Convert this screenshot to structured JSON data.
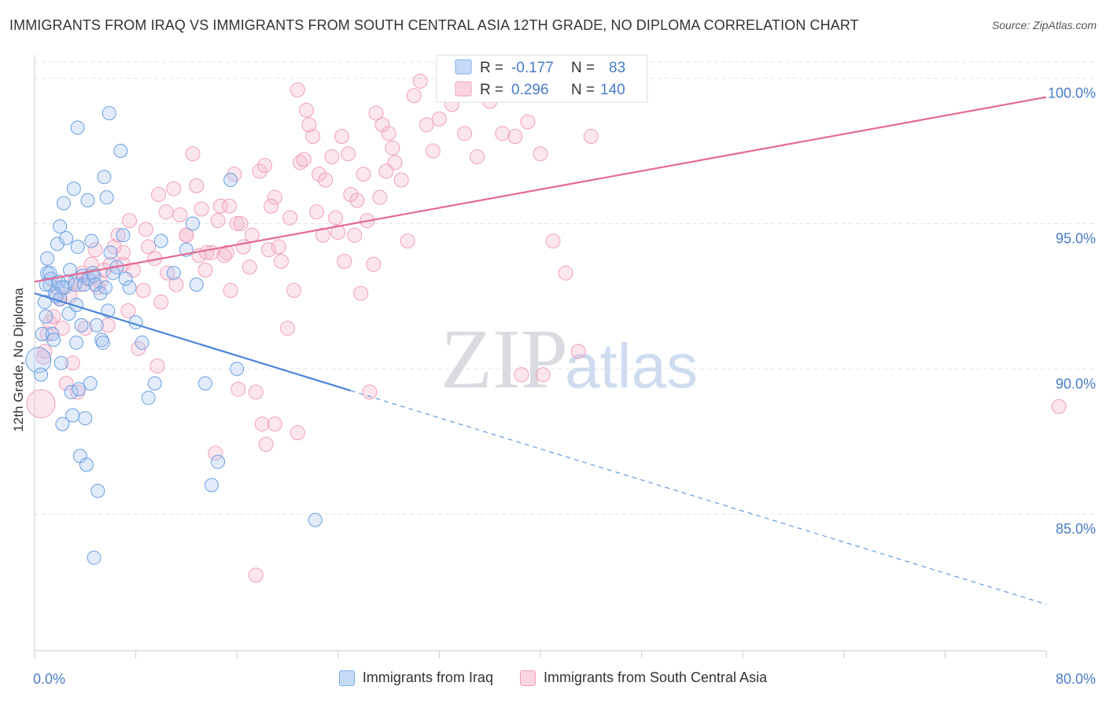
{
  "title": "IMMIGRANTS FROM IRAQ VS IMMIGRANTS FROM SOUTH CENTRAL ASIA 12TH GRADE, NO DIPLOMA CORRELATION CHART",
  "source": "Source: ZipAtlas.com",
  "watermark": {
    "zip": "ZIP",
    "atlas": "atlas"
  },
  "colors": {
    "blue": "#4a86d8",
    "blue_fill": "#a9c6f0",
    "pink": "#e46a93",
    "pink_fill": "#f4b6cb",
    "tick_label": "#4a7cc9"
  },
  "legend": {
    "r_label": "R =",
    "n_label": "N =",
    "entries": [
      {
        "r": "-0.177",
        "n": "83"
      },
      {
        "r": "0.296",
        "n": "140"
      }
    ]
  },
  "bottom_legend": [
    "Immigrants from Iraq",
    "Immigrants from South Central Asia"
  ],
  "chart_data": {
    "type": "scatter",
    "title": "IMMIGRANTS FROM IRAQ VS IMMIGRANTS FROM SOUTH CENTRAL ASIA 12TH GRADE, NO DIPLOMA CORRELATION CHART",
    "xlabel": "",
    "ylabel": "12th Grade, No Diploma",
    "xlim": [
      0,
      80
    ],
    "ylim": [
      80.3,
      100.8
    ],
    "x_tick_labels": [
      "0.0%",
      "80.0%"
    ],
    "y_ticks": [
      85,
      90,
      95,
      100
    ],
    "y_tick_labels": [
      "85.0%",
      "90.0%",
      "95.0%",
      "100.0%"
    ],
    "series": [
      {
        "name": "Immigrants from Iraq",
        "r": -0.177,
        "n": 83,
        "trend": {
          "x0": 0,
          "y0": 92.6,
          "x1": 25,
          "y1": 89.25,
          "dash_x1": 80,
          "dash_y1": 81.9
        },
        "points": [
          [
            0.3,
            90.3
          ],
          [
            0.6,
            91.2
          ],
          [
            0.8,
            92.3
          ],
          [
            0.9,
            91.8
          ],
          [
            1.0,
            93.3
          ],
          [
            1.2,
            92.9
          ],
          [
            1.3,
            93.1
          ],
          [
            1.4,
            91.2
          ],
          [
            1.5,
            91.0
          ],
          [
            1.6,
            92.6
          ],
          [
            1.8,
            94.3
          ],
          [
            1.9,
            93.0
          ],
          [
            2.0,
            92.4
          ],
          [
            2.1,
            90.2
          ],
          [
            2.2,
            88.1
          ],
          [
            2.3,
            95.7
          ],
          [
            2.4,
            92.8
          ],
          [
            2.6,
            93.0
          ],
          [
            2.7,
            91.9
          ],
          [
            2.8,
            93.4
          ],
          [
            2.9,
            89.2
          ],
          [
            3.0,
            88.4
          ],
          [
            3.1,
            96.2
          ],
          [
            3.2,
            92.9
          ],
          [
            3.3,
            90.9
          ],
          [
            3.4,
            94.2
          ],
          [
            3.5,
            89.3
          ],
          [
            3.6,
            87.0
          ],
          [
            3.7,
            91.5
          ],
          [
            3.8,
            93.2
          ],
          [
            3.9,
            92.9
          ],
          [
            4.0,
            88.3
          ],
          [
            4.1,
            86.7
          ],
          [
            4.2,
            95.8
          ],
          [
            4.3,
            93.1
          ],
          [
            4.4,
            89.5
          ],
          [
            4.5,
            94.4
          ],
          [
            4.6,
            93.3
          ],
          [
            4.7,
            93.2
          ],
          [
            4.8,
            92.9
          ],
          [
            4.9,
            91.5
          ],
          [
            5.0,
            85.8
          ],
          [
            5.2,
            92.6
          ],
          [
            5.3,
            91.0
          ],
          [
            5.4,
            90.9
          ],
          [
            5.5,
            96.6
          ],
          [
            5.6,
            92.8
          ],
          [
            5.7,
            95.9
          ],
          [
            5.8,
            92.0
          ],
          [
            5.9,
            98.8
          ],
          [
            6.0,
            94.0
          ],
          [
            6.2,
            93.3
          ],
          [
            6.5,
            93.5
          ],
          [
            6.8,
            97.5
          ],
          [
            7.0,
            94.6
          ],
          [
            7.2,
            93.1
          ],
          [
            7.5,
            92.8
          ],
          [
            8.0,
            91.6
          ],
          [
            8.5,
            90.9
          ],
          [
            9.0,
            89.0
          ],
          [
            9.5,
            89.5
          ],
          [
            10.0,
            94.4
          ],
          [
            11.0,
            93.3
          ],
          [
            12.0,
            94.1
          ],
          [
            12.5,
            95.0
          ],
          [
            12.8,
            92.9
          ],
          [
            13.5,
            89.5
          ],
          [
            14.0,
            86.0
          ],
          [
            14.5,
            86.8
          ],
          [
            16.0,
            90.0
          ],
          [
            15.5,
            96.5
          ],
          [
            22.2,
            84.8
          ],
          [
            3.4,
            98.3
          ],
          [
            4.7,
            83.5
          ],
          [
            2.0,
            94.9
          ],
          [
            1.2,
            93.3
          ],
          [
            0.9,
            92.9
          ],
          [
            1.7,
            92.5
          ],
          [
            2.5,
            94.5
          ],
          [
            3.3,
            92.2
          ],
          [
            2.2,
            92.8
          ],
          [
            0.5,
            89.8
          ],
          [
            1.0,
            93.8
          ]
        ]
      },
      {
        "name": "Immigrants from South Central Asia",
        "r": 0.296,
        "n": 140,
        "trend": {
          "x0": 0,
          "y0": 93.0,
          "x1": 80,
          "y1": 99.35
        },
        "points": [
          [
            0.5,
            88.8
          ],
          [
            0.7,
            90.4
          ],
          [
            0.8,
            90.6
          ],
          [
            1.0,
            91.2
          ],
          [
            1.2,
            91.6
          ],
          [
            1.5,
            91.8
          ],
          [
            1.8,
            92.8
          ],
          [
            2.0,
            92.4
          ],
          [
            2.2,
            91.4
          ],
          [
            2.5,
            89.5
          ],
          [
            2.8,
            92.5
          ],
          [
            3.0,
            90.2
          ],
          [
            3.2,
            93.0
          ],
          [
            3.4,
            89.2
          ],
          [
            3.6,
            92.9
          ],
          [
            3.8,
            93.3
          ],
          [
            4.0,
            91.4
          ],
          [
            4.2,
            93.1
          ],
          [
            4.5,
            93.6
          ],
          [
            4.8,
            94.1
          ],
          [
            5.0,
            92.8
          ],
          [
            5.2,
            93.0
          ],
          [
            5.5,
            93.4
          ],
          [
            5.8,
            91.5
          ],
          [
            6.0,
            93.6
          ],
          [
            6.3,
            94.2
          ],
          [
            6.6,
            94.6
          ],
          [
            7.0,
            93.6
          ],
          [
            7.4,
            92.0
          ],
          [
            7.8,
            93.4
          ],
          [
            8.2,
            90.7
          ],
          [
            8.6,
            92.7
          ],
          [
            9.0,
            94.2
          ],
          [
            9.5,
            93.8
          ],
          [
            10.0,
            92.3
          ],
          [
            10.5,
            93.3
          ],
          [
            11.0,
            96.2
          ],
          [
            11.5,
            95.3
          ],
          [
            12.0,
            94.6
          ],
          [
            12.5,
            97.4
          ],
          [
            13.0,
            93.9
          ],
          [
            13.5,
            93.4
          ],
          [
            14.0,
            94.0
          ],
          [
            14.5,
            95.1
          ],
          [
            15.0,
            93.9
          ],
          [
            15.5,
            92.7
          ],
          [
            16.0,
            95.0
          ],
          [
            16.5,
            94.2
          ],
          [
            17.0,
            93.5
          ],
          [
            17.5,
            89.2
          ],
          [
            18.0,
            88.1
          ],
          [
            18.5,
            94.1
          ],
          [
            19.0,
            95.9
          ],
          [
            19.5,
            93.7
          ],
          [
            20.0,
            91.4
          ],
          [
            20.5,
            92.7
          ],
          [
            21.0,
            97.1
          ],
          [
            21.5,
            98.9
          ],
          [
            22.0,
            98.0
          ],
          [
            22.5,
            96.7
          ],
          [
            23.0,
            96.5
          ],
          [
            23.5,
            97.3
          ],
          [
            24.0,
            94.7
          ],
          [
            24.5,
            93.7
          ],
          [
            25.0,
            96.0
          ],
          [
            25.5,
            95.8
          ],
          [
            26.0,
            96.7
          ],
          [
            26.5,
            89.2
          ],
          [
            27.0,
            98.8
          ],
          [
            27.5,
            98.4
          ],
          [
            28.0,
            98.1
          ],
          [
            28.5,
            97.1
          ],
          [
            29.0,
            96.5
          ],
          [
            29.5,
            94.4
          ],
          [
            30.0,
            99.4
          ],
          [
            30.5,
            99.9
          ],
          [
            31.0,
            98.4
          ],
          [
            31.5,
            97.5
          ],
          [
            32.0,
            98.6
          ],
          [
            33.0,
            99.1
          ],
          [
            34.0,
            98.1
          ],
          [
            35.0,
            97.3
          ],
          [
            36.0,
            99.2
          ],
          [
            37.0,
            98.1
          ],
          [
            38.0,
            98.0
          ],
          [
            39.0,
            98.5
          ],
          [
            40.0,
            97.4
          ],
          [
            41.0,
            94.4
          ],
          [
            42.0,
            93.3
          ],
          [
            43.0,
            90.6
          ],
          [
            44.0,
            98.0
          ],
          [
            38.5,
            89.8
          ],
          [
            40.2,
            89.8
          ],
          [
            81.0,
            88.7
          ],
          [
            9.7,
            90.1
          ],
          [
            11.2,
            92.9
          ],
          [
            12.8,
            96.3
          ],
          [
            13.2,
            95.5
          ],
          [
            14.7,
            95.6
          ],
          [
            15.2,
            94.0
          ],
          [
            15.8,
            96.7
          ],
          [
            16.3,
            95.0
          ],
          [
            17.2,
            94.6
          ],
          [
            17.8,
            96.8
          ],
          [
            18.2,
            97.0
          ],
          [
            18.7,
            95.6
          ],
          [
            19.3,
            94.2
          ],
          [
            20.2,
            95.2
          ],
          [
            20.8,
            99.6
          ],
          [
            21.3,
            97.2
          ],
          [
            21.7,
            98.4
          ],
          [
            22.3,
            95.4
          ],
          [
            22.8,
            94.6
          ],
          [
            23.8,
            95.2
          ],
          [
            24.3,
            98.0
          ],
          [
            24.8,
            97.4
          ],
          [
            25.3,
            94.6
          ],
          [
            25.8,
            92.6
          ],
          [
            26.3,
            95.1
          ],
          [
            26.8,
            93.6
          ],
          [
            27.3,
            95.9
          ],
          [
            27.8,
            96.8
          ],
          [
            28.3,
            97.6
          ],
          [
            18.3,
            87.4
          ],
          [
            17.5,
            82.9
          ],
          [
            20.8,
            87.8
          ],
          [
            14.3,
            87.1
          ],
          [
            16.1,
            89.3
          ],
          [
            19.0,
            88.1
          ],
          [
            7.5,
            95.1
          ],
          [
            8.8,
            94.8
          ],
          [
            10.4,
            95.4
          ],
          [
            12.0,
            94.6
          ],
          [
            13.6,
            94.0
          ],
          [
            15.4,
            95.6
          ],
          [
            9.8,
            96.0
          ],
          [
            7.0,
            94.0
          ]
        ]
      }
    ]
  }
}
